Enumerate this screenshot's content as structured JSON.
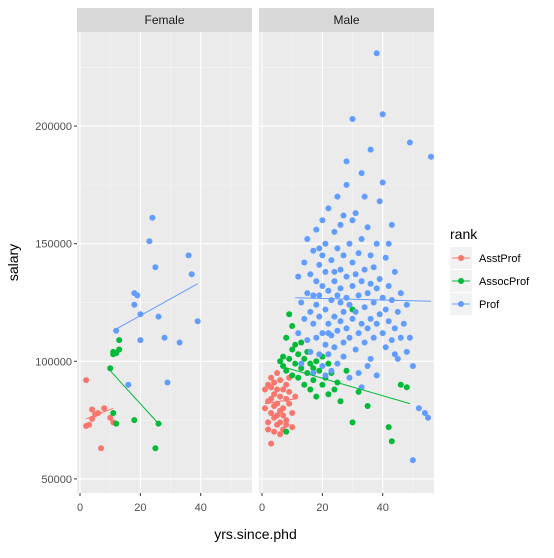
{
  "chart_data": {
    "type": "scatter",
    "title": "",
    "xlabel": "yrs.since.phd",
    "ylabel": "salary",
    "facets": [
      "Female",
      "Male"
    ],
    "xlim": [
      -1,
      57
    ],
    "ylim": [
      44000,
      240000
    ],
    "x_ticks": [
      0,
      20,
      40
    ],
    "y_ticks": [
      50000,
      100000,
      150000,
      200000
    ],
    "y_tick_labels": [
      "50000",
      "100000",
      "150000",
      "200000"
    ],
    "grid": true,
    "legend": {
      "title": "rank",
      "position": "right",
      "entries": [
        "AsstProf",
        "AssocProf",
        "Prof"
      ]
    },
    "series": [
      {
        "name": "AsstProf",
        "color": "#F8766D"
      },
      {
        "name": "AssocProf",
        "color": "#00BA38"
      },
      {
        "name": "Prof",
        "color": "#619CFF"
      }
    ],
    "trend_lines": [
      {
        "facet": "Female",
        "series": "AsstProf",
        "x": [
          2,
          11
        ],
        "y": [
          75500,
          80000
        ]
      },
      {
        "facet": "Female",
        "series": "AssocProf",
        "x": [
          10,
          26
        ],
        "y": [
          96000,
          73500
        ]
      },
      {
        "facet": "Female",
        "series": "Prof",
        "x": [
          11,
          39
        ],
        "y": [
          113000,
          133000
        ]
      },
      {
        "facet": "Male",
        "series": "AsstProf",
        "x": [
          1,
          11
        ],
        "y": [
          82000,
          84000
        ]
      },
      {
        "facet": "Male",
        "series": "AssocProf",
        "x": [
          6,
          49
        ],
        "y": [
          98000,
          82000
        ]
      },
      {
        "facet": "Male",
        "series": "Prof",
        "x": [
          11,
          56
        ],
        "y": [
          127000,
          125500
        ]
      }
    ],
    "points": {
      "Female": {
        "AsstProf": [
          [
            2,
            72500
          ],
          [
            2,
            92000
          ],
          [
            3,
            73000
          ],
          [
            4,
            79500
          ],
          [
            4,
            75500
          ],
          [
            5,
            77500
          ],
          [
            6,
            78000
          ],
          [
            7,
            63000
          ],
          [
            8,
            80000
          ],
          [
            10,
            76000
          ],
          [
            11,
            74000
          ]
        ],
        "AssocProf": [
          [
            10,
            97000
          ],
          [
            11,
            104000
          ],
          [
            11,
            103000
          ],
          [
            12,
            103500
          ],
          [
            13,
            109000
          ],
          [
            13,
            105000
          ],
          [
            12,
            73500
          ],
          [
            11,
            78000
          ],
          [
            18,
            75000
          ],
          [
            26,
            73500
          ],
          [
            25,
            63000
          ]
        ],
        "Prof": [
          [
            12,
            113000
          ],
          [
            16,
            90000
          ],
          [
            18,
            129000
          ],
          [
            18,
            124000
          ],
          [
            19,
            128000
          ],
          [
            20,
            120000
          ],
          [
            20,
            109000
          ],
          [
            23,
            151000
          ],
          [
            24,
            161000
          ],
          [
            25,
            140000
          ],
          [
            26,
            119000
          ],
          [
            28,
            110000
          ],
          [
            29,
            91000
          ],
          [
            33,
            108000
          ],
          [
            36,
            145000
          ],
          [
            37,
            137000
          ],
          [
            39,
            117000
          ]
        ]
      },
      "Male": {
        "AsstProf": [
          [
            1,
            88000
          ],
          [
            1,
            80000
          ],
          [
            2,
            74000
          ],
          [
            2,
            90000
          ],
          [
            2,
            71000
          ],
          [
            3,
            84000
          ],
          [
            3,
            93000
          ],
          [
            3,
            65000
          ],
          [
            3,
            78000
          ],
          [
            4,
            86000
          ],
          [
            4,
            76000
          ],
          [
            4,
            91000
          ],
          [
            4,
            70000
          ],
          [
            5,
            82000
          ],
          [
            5,
            88000
          ],
          [
            5,
            73000
          ],
          [
            5,
            95000
          ],
          [
            6,
            79000
          ],
          [
            6,
            92000
          ],
          [
            6,
            85000
          ],
          [
            6,
            74000
          ],
          [
            7,
            88000
          ],
          [
            7,
            80000
          ],
          [
            7,
            77000
          ],
          [
            7,
            71000
          ],
          [
            8,
            84000
          ],
          [
            8,
            90000
          ],
          [
            8,
            75000
          ],
          [
            9,
            82000
          ],
          [
            9,
            87000
          ],
          [
            10,
            78000
          ],
          [
            10,
            72000
          ],
          [
            11,
            85000
          ],
          [
            2,
            83000
          ],
          [
            3,
            89000
          ],
          [
            4,
            81000
          ],
          [
            5,
            77000
          ],
          [
            6,
            69000
          ],
          [
            8,
            73000
          ],
          [
            9,
            93000
          ]
        ],
        "AssocProf": [
          [
            6,
            100000
          ],
          [
            7,
            102000
          ],
          [
            7,
            98000
          ],
          [
            8,
            110000
          ],
          [
            8,
            96000
          ],
          [
            9,
            101000
          ],
          [
            10,
            105000
          ],
          [
            10,
            94000
          ],
          [
            11,
            107000
          ],
          [
            11,
            99000
          ],
          [
            12,
            103000
          ],
          [
            12,
            93000
          ],
          [
            13,
            108000
          ],
          [
            13,
            97000
          ],
          [
            14,
            101000
          ],
          [
            14,
            90000
          ],
          [
            15,
            104000
          ],
          [
            15,
            95000
          ],
          [
            16,
            99000
          ],
          [
            16,
            88000
          ],
          [
            17,
            97000
          ],
          [
            17,
            92000
          ],
          [
            18,
            100000
          ],
          [
            18,
            85000
          ],
          [
            19,
            96000
          ],
          [
            20,
            90000
          ],
          [
            20,
            102000
          ],
          [
            21,
            93000
          ],
          [
            22,
            86000
          ],
          [
            22,
            99000
          ],
          [
            23,
            95000
          ],
          [
            24,
            88000
          ],
          [
            25,
            91000
          ],
          [
            26,
            83000
          ],
          [
            28,
            96000
          ],
          [
            30,
            74000
          ],
          [
            32,
            87000
          ],
          [
            35,
            81000
          ],
          [
            42,
            72000
          ],
          [
            43,
            66000
          ],
          [
            46,
            90000
          ],
          [
            48,
            89000
          ],
          [
            8,
            70000
          ],
          [
            10,
            115000
          ],
          [
            9,
            120000
          ],
          [
            30,
            122000
          ]
        ],
        "Prof": [
          [
            12,
            112000
          ],
          [
            12,
            136000
          ],
          [
            13,
            125000
          ],
          [
            13,
            99000
          ],
          [
            14,
            118000
          ],
          [
            14,
            142000
          ],
          [
            15,
            109000
          ],
          [
            15,
            129000
          ],
          [
            15,
            152000
          ],
          [
            16,
            121000
          ],
          [
            16,
            104000
          ],
          [
            16,
            137000
          ],
          [
            17,
            116000
          ],
          [
            17,
            128000
          ],
          [
            17,
            147000
          ],
          [
            17,
            95000
          ],
          [
            18,
            110000
          ],
          [
            18,
            124000
          ],
          [
            18,
            134000
          ],
          [
            18,
            156000
          ],
          [
            19,
            103000
          ],
          [
            19,
            119000
          ],
          [
            19,
            141000
          ],
          [
            19,
            128000
          ],
          [
            20,
            112000
          ],
          [
            20,
            132000
          ],
          [
            20,
            145000
          ],
          [
            20,
            98000
          ],
          [
            20,
            160000
          ],
          [
            21,
            107000
          ],
          [
            21,
            122000
          ],
          [
            21,
            138000
          ],
          [
            21,
            150000
          ],
          [
            22,
            116000
          ],
          [
            22,
            130000
          ],
          [
            22,
            103000
          ],
          [
            22,
            165000
          ],
          [
            23,
            111000
          ],
          [
            23,
            126000
          ],
          [
            23,
            143000
          ],
          [
            23,
            96000
          ],
          [
            24,
            119000
          ],
          [
            24,
            134000
          ],
          [
            24,
            155000
          ],
          [
            24,
            106000
          ],
          [
            25,
            113000
          ],
          [
            25,
            128000
          ],
          [
            25,
            148000
          ],
          [
            25,
            170000
          ],
          [
            25,
            99000
          ],
          [
            26,
            117000
          ],
          [
            26,
            131000
          ],
          [
            26,
            139000
          ],
          [
            26,
            158000
          ],
          [
            27,
            108000
          ],
          [
            27,
            121000
          ],
          [
            27,
            145000
          ],
          [
            27,
            102000
          ],
          [
            28,
            114000
          ],
          [
            28,
            127000
          ],
          [
            28,
            136000
          ],
          [
            28,
            175000
          ],
          [
            29,
            110000
          ],
          [
            29,
            124000
          ],
          [
            29,
            150000
          ],
          [
            29,
            93000
          ],
          [
            30,
            118000
          ],
          [
            30,
            132000
          ],
          [
            30,
            142000
          ],
          [
            30,
            203000
          ],
          [
            31,
            105000
          ],
          [
            31,
            121000
          ],
          [
            31,
            137000
          ],
          [
            31,
            163000
          ],
          [
            32,
            112000
          ],
          [
            32,
            128000
          ],
          [
            32,
            146000
          ],
          [
            32,
            95000
          ],
          [
            33,
            116000
          ],
          [
            33,
            134000
          ],
          [
            33,
            152000
          ],
          [
            33,
            180000
          ],
          [
            34,
            108000
          ],
          [
            34,
            123000
          ],
          [
            34,
            139000
          ],
          [
            35,
            114000
          ],
          [
            35,
            129000
          ],
          [
            35,
            157000
          ],
          [
            35,
            98000
          ],
          [
            36,
            118000
          ],
          [
            36,
            133000
          ],
          [
            36,
            145000
          ],
          [
            36,
            190000
          ],
          [
            37,
            110000
          ],
          [
            37,
            125000
          ],
          [
            37,
            140000
          ],
          [
            38,
            231000
          ],
          [
            38,
            116000
          ],
          [
            38,
            131000
          ],
          [
            38,
            150000
          ],
          [
            38,
            94000
          ],
          [
            39,
            120000
          ],
          [
            39,
            135000
          ],
          [
            39,
            168000
          ],
          [
            40,
            112000
          ],
          [
            40,
            127000
          ],
          [
            40,
            205000
          ],
          [
            41,
            106000
          ],
          [
            41,
            122000
          ],
          [
            41,
            144000
          ],
          [
            42,
            117000
          ],
          [
            42,
            132000
          ],
          [
            43,
            109000
          ],
          [
            43,
            126000
          ],
          [
            43,
            158000
          ],
          [
            44,
            114000
          ],
          [
            44,
            138000
          ],
          [
            45,
            101000
          ],
          [
            45,
            121000
          ],
          [
            46,
            110000
          ],
          [
            46,
            129000
          ],
          [
            47,
            116000
          ],
          [
            48,
            104000
          ],
          [
            48,
            124000
          ],
          [
            49,
            193000
          ],
          [
            49,
            110000
          ],
          [
            50,
            58000
          ],
          [
            50,
            98000
          ],
          [
            52,
            80000
          ],
          [
            54,
            78000
          ],
          [
            55,
            76000
          ],
          [
            56,
            187000
          ],
          [
            30,
            160000
          ],
          [
            28,
            185000
          ],
          [
            22,
            112000
          ],
          [
            26,
            125000
          ],
          [
            34,
            170000
          ],
          [
            19,
            148000
          ],
          [
            24,
            138000
          ],
          [
            40,
            176000
          ],
          [
            42,
            150000
          ],
          [
            27,
            162000
          ],
          [
            36,
            101000
          ],
          [
            44,
            103000
          ],
          [
            33,
            89000
          ],
          [
            21,
            94000
          ]
        ]
      }
    }
  }
}
